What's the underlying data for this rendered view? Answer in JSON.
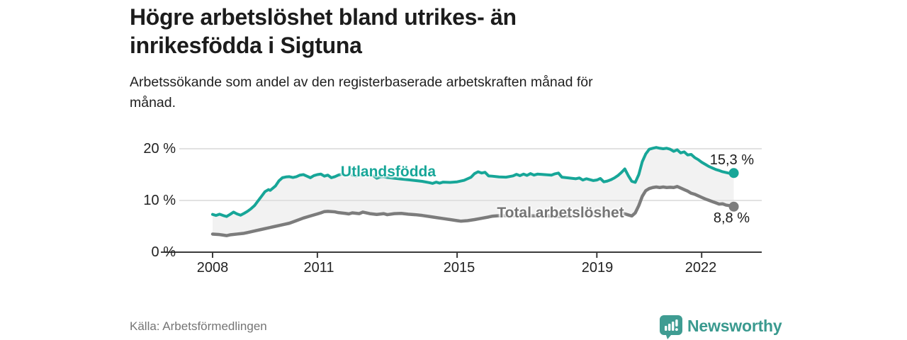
{
  "header": {
    "title_line1": "Högre arbetslöshet bland utrikes- än",
    "title_line2": "inrikesfödda i Sigtuna",
    "subtitle_line1": "Arbetssökande som andel av den registerbaserade arbetskraften månad för",
    "subtitle_line2": "månad."
  },
  "footer": {
    "source": "Källa: Arbetsförmedlingen",
    "brand": "Newsworthy",
    "brand_icon": "bar-chart-speech-bubble-icon"
  },
  "colors": {
    "foreign_born_line": "#17a698",
    "total_line": "#7c7c7c",
    "band_fill": "#f2f2f2",
    "gridline": "#d9d9d9",
    "axis": "#3b3b3b",
    "text_dark": "#1c1c1c",
    "brand_teal": "#3a9a8f"
  },
  "chart_data": {
    "type": "line",
    "title": "Högre arbetslöshet bland utrikes- än inrikesfödda i Sigtuna",
    "subtitle": "Arbetssökande som andel av den registerbaserade arbetskraften månad för månad.",
    "xlabel": "",
    "ylabel": "",
    "x_range": [
      2008,
      2023.7
    ],
    "ylim": [
      0,
      20
    ],
    "grid": "horizontal",
    "legend_position": "inline-labels",
    "y_axis": {
      "unit": "%",
      "ticks": [
        {
          "value": 20,
          "label": "20 %"
        },
        {
          "value": 10,
          "label": "10 %"
        },
        {
          "value": 0,
          "label": "0 %"
        }
      ]
    },
    "x_axis": {
      "ticks": [
        {
          "year": 2008,
          "label": "2008"
        },
        {
          "year": 2011,
          "label": "2011"
        },
        {
          "year": 2015,
          "label": "2015"
        },
        {
          "year": 2019,
          "label": "2019"
        },
        {
          "year": 2022,
          "label": "2022"
        }
      ]
    },
    "band_between_series_fill": "#f2f2f2",
    "series": [
      {
        "name": "Utlandsfödda",
        "color": "#17a698",
        "end_value": 15.3,
        "end_value_label": "15,3 %",
        "points": [
          [
            2008.0,
            7.3
          ],
          [
            2008.1,
            7.1
          ],
          [
            2008.2,
            7.35
          ],
          [
            2008.3,
            7.1
          ],
          [
            2008.4,
            6.9
          ],
          [
            2008.5,
            7.3
          ],
          [
            2008.6,
            7.75
          ],
          [
            2008.7,
            7.4
          ],
          [
            2008.8,
            7.15
          ],
          [
            2008.9,
            7.5
          ],
          [
            2009.0,
            7.9
          ],
          [
            2009.1,
            8.4
          ],
          [
            2009.2,
            9.0
          ],
          [
            2009.3,
            9.9
          ],
          [
            2009.4,
            10.8
          ],
          [
            2009.5,
            11.7
          ],
          [
            2009.6,
            12.1
          ],
          [
            2009.65,
            11.95
          ],
          [
            2009.8,
            12.8
          ],
          [
            2009.9,
            13.8
          ],
          [
            2010.0,
            14.4
          ],
          [
            2010.1,
            14.55
          ],
          [
            2010.2,
            14.6
          ],
          [
            2010.3,
            14.45
          ],
          [
            2010.4,
            14.6
          ],
          [
            2010.5,
            14.9
          ],
          [
            2010.6,
            15.0
          ],
          [
            2010.7,
            14.7
          ],
          [
            2010.8,
            14.4
          ],
          [
            2010.9,
            14.8
          ],
          [
            2011.0,
            15.0
          ],
          [
            2011.1,
            15.1
          ],
          [
            2011.2,
            14.7
          ],
          [
            2011.3,
            14.9
          ],
          [
            2011.4,
            14.4
          ],
          [
            2011.5,
            14.6
          ],
          [
            2011.6,
            14.9
          ],
          [
            2011.7,
            15.1
          ],
          [
            2011.8,
            14.8
          ],
          [
            2011.9,
            15.2
          ],
          [
            2012.0,
            14.9
          ],
          [
            2012.1,
            14.7
          ],
          [
            2012.2,
            15.0
          ],
          [
            2012.3,
            14.8
          ],
          [
            2012.4,
            15.1
          ],
          [
            2012.5,
            15.2
          ],
          [
            2012.6,
            14.8
          ],
          [
            2012.7,
            14.3
          ],
          [
            2012.8,
            14.55
          ],
          [
            2012.9,
            14.6
          ],
          [
            2013.0,
            14.45
          ],
          [
            2013.2,
            14.3
          ],
          [
            2013.4,
            14.15
          ],
          [
            2013.6,
            14.0
          ],
          [
            2013.8,
            13.85
          ],
          [
            2014.0,
            13.7
          ],
          [
            2014.2,
            13.45
          ],
          [
            2014.3,
            13.3
          ],
          [
            2014.4,
            13.55
          ],
          [
            2014.5,
            13.35
          ],
          [
            2014.6,
            13.55
          ],
          [
            2014.8,
            13.5
          ],
          [
            2015.0,
            13.6
          ],
          [
            2015.2,
            13.9
          ],
          [
            2015.4,
            14.5
          ],
          [
            2015.5,
            15.2
          ],
          [
            2015.6,
            15.55
          ],
          [
            2015.7,
            15.3
          ],
          [
            2015.8,
            15.45
          ],
          [
            2015.9,
            14.75
          ],
          [
            2016.0,
            14.7
          ],
          [
            2016.2,
            14.55
          ],
          [
            2016.4,
            14.5
          ],
          [
            2016.6,
            14.75
          ],
          [
            2016.7,
            15.05
          ],
          [
            2016.8,
            14.8
          ],
          [
            2016.9,
            15.1
          ],
          [
            2017.0,
            14.85
          ],
          [
            2017.1,
            15.2
          ],
          [
            2017.2,
            14.9
          ],
          [
            2017.3,
            15.1
          ],
          [
            2017.5,
            15.0
          ],
          [
            2017.7,
            14.9
          ],
          [
            2017.8,
            15.15
          ],
          [
            2017.9,
            15.3
          ],
          [
            2018.0,
            14.5
          ],
          [
            2018.2,
            14.35
          ],
          [
            2018.4,
            14.2
          ],
          [
            2018.5,
            14.35
          ],
          [
            2018.6,
            13.95
          ],
          [
            2018.7,
            14.2
          ],
          [
            2018.9,
            13.85
          ],
          [
            2019.0,
            13.95
          ],
          [
            2019.1,
            14.25
          ],
          [
            2019.2,
            13.6
          ],
          [
            2019.3,
            13.75
          ],
          [
            2019.4,
            14.0
          ],
          [
            2019.5,
            14.35
          ],
          [
            2019.6,
            14.8
          ],
          [
            2019.7,
            15.4
          ],
          [
            2019.8,
            16.1
          ],
          [
            2019.9,
            14.8
          ],
          [
            2020.0,
            13.7
          ],
          [
            2020.1,
            13.5
          ],
          [
            2020.2,
            15.0
          ],
          [
            2020.3,
            17.5
          ],
          [
            2020.4,
            19.0
          ],
          [
            2020.5,
            19.9
          ],
          [
            2020.6,
            20.1
          ],
          [
            2020.7,
            20.25
          ],
          [
            2020.8,
            20.1
          ],
          [
            2020.9,
            20.0
          ],
          [
            2021.0,
            20.1
          ],
          [
            2021.1,
            19.9
          ],
          [
            2021.2,
            19.5
          ],
          [
            2021.3,
            19.8
          ],
          [
            2021.4,
            19.2
          ],
          [
            2021.5,
            19.4
          ],
          [
            2021.6,
            18.8
          ],
          [
            2021.7,
            18.9
          ],
          [
            2021.8,
            18.3
          ],
          [
            2021.9,
            17.9
          ],
          [
            2022.0,
            17.4
          ],
          [
            2022.1,
            17.0
          ],
          [
            2022.2,
            16.6
          ],
          [
            2022.3,
            16.3
          ],
          [
            2022.4,
            16.0
          ],
          [
            2022.5,
            15.8
          ],
          [
            2022.6,
            15.55
          ],
          [
            2022.7,
            15.4
          ],
          [
            2022.8,
            15.25
          ],
          [
            2022.92,
            15.3
          ]
        ]
      },
      {
        "name": "Total arbetslöshet",
        "color": "#7c7c7c",
        "end_value": 8.8,
        "end_value_label": "8,8 %",
        "points": [
          [
            2008.0,
            3.5
          ],
          [
            2008.2,
            3.4
          ],
          [
            2008.3,
            3.3
          ],
          [
            2008.4,
            3.2
          ],
          [
            2008.5,
            3.35
          ],
          [
            2008.7,
            3.5
          ],
          [
            2008.9,
            3.65
          ],
          [
            2009.0,
            3.8
          ],
          [
            2009.2,
            4.1
          ],
          [
            2009.4,
            4.4
          ],
          [
            2009.6,
            4.7
          ],
          [
            2009.8,
            5.0
          ],
          [
            2010.0,
            5.3
          ],
          [
            2010.2,
            5.6
          ],
          [
            2010.4,
            6.1
          ],
          [
            2010.6,
            6.6
          ],
          [
            2010.8,
            7.0
          ],
          [
            2011.0,
            7.4
          ],
          [
            2011.1,
            7.6
          ],
          [
            2011.2,
            7.85
          ],
          [
            2011.3,
            7.9
          ],
          [
            2011.5,
            7.8
          ],
          [
            2011.6,
            7.65
          ],
          [
            2011.8,
            7.5
          ],
          [
            2011.9,
            7.4
          ],
          [
            2012.0,
            7.6
          ],
          [
            2012.2,
            7.45
          ],
          [
            2012.3,
            7.75
          ],
          [
            2012.5,
            7.45
          ],
          [
            2012.7,
            7.3
          ],
          [
            2012.9,
            7.45
          ],
          [
            2013.0,
            7.25
          ],
          [
            2013.2,
            7.45
          ],
          [
            2013.4,
            7.5
          ],
          [
            2013.6,
            7.35
          ],
          [
            2013.8,
            7.25
          ],
          [
            2014.0,
            7.1
          ],
          [
            2014.2,
            6.9
          ],
          [
            2014.4,
            6.7
          ],
          [
            2014.6,
            6.5
          ],
          [
            2014.8,
            6.3
          ],
          [
            2015.0,
            6.1
          ],
          [
            2015.1,
            6.0
          ],
          [
            2015.3,
            6.1
          ],
          [
            2015.5,
            6.3
          ],
          [
            2015.7,
            6.55
          ],
          [
            2015.9,
            6.8
          ],
          [
            2016.0,
            6.95
          ],
          [
            2016.3,
            7.1
          ],
          [
            2016.5,
            7.0
          ],
          [
            2016.8,
            7.15
          ],
          [
            2017.0,
            7.05
          ],
          [
            2017.3,
            7.0
          ],
          [
            2017.5,
            7.1
          ],
          [
            2017.8,
            6.95
          ],
          [
            2018.0,
            6.9
          ],
          [
            2018.3,
            7.0
          ],
          [
            2018.5,
            7.1
          ],
          [
            2018.8,
            7.2
          ],
          [
            2019.0,
            7.15
          ],
          [
            2019.3,
            7.3
          ],
          [
            2019.5,
            7.5
          ],
          [
            2019.7,
            7.6
          ],
          [
            2019.9,
            7.2
          ],
          [
            2020.0,
            7.0
          ],
          [
            2020.1,
            7.6
          ],
          [
            2020.2,
            9.0
          ],
          [
            2020.3,
            10.8
          ],
          [
            2020.4,
            11.9
          ],
          [
            2020.5,
            12.3
          ],
          [
            2020.6,
            12.5
          ],
          [
            2020.7,
            12.6
          ],
          [
            2020.8,
            12.5
          ],
          [
            2020.9,
            12.6
          ],
          [
            2021.0,
            12.5
          ],
          [
            2021.1,
            12.55
          ],
          [
            2021.2,
            12.5
          ],
          [
            2021.3,
            12.7
          ],
          [
            2021.4,
            12.4
          ],
          [
            2021.5,
            12.1
          ],
          [
            2021.6,
            11.8
          ],
          [
            2021.7,
            11.4
          ],
          [
            2021.8,
            11.2
          ],
          [
            2021.9,
            10.9
          ],
          [
            2022.0,
            10.6
          ],
          [
            2022.1,
            10.3
          ],
          [
            2022.2,
            10.05
          ],
          [
            2022.3,
            9.8
          ],
          [
            2022.4,
            9.55
          ],
          [
            2022.5,
            9.3
          ],
          [
            2022.6,
            9.35
          ],
          [
            2022.7,
            9.1
          ],
          [
            2022.8,
            9.0
          ],
          [
            2022.92,
            8.8
          ]
        ]
      }
    ]
  }
}
